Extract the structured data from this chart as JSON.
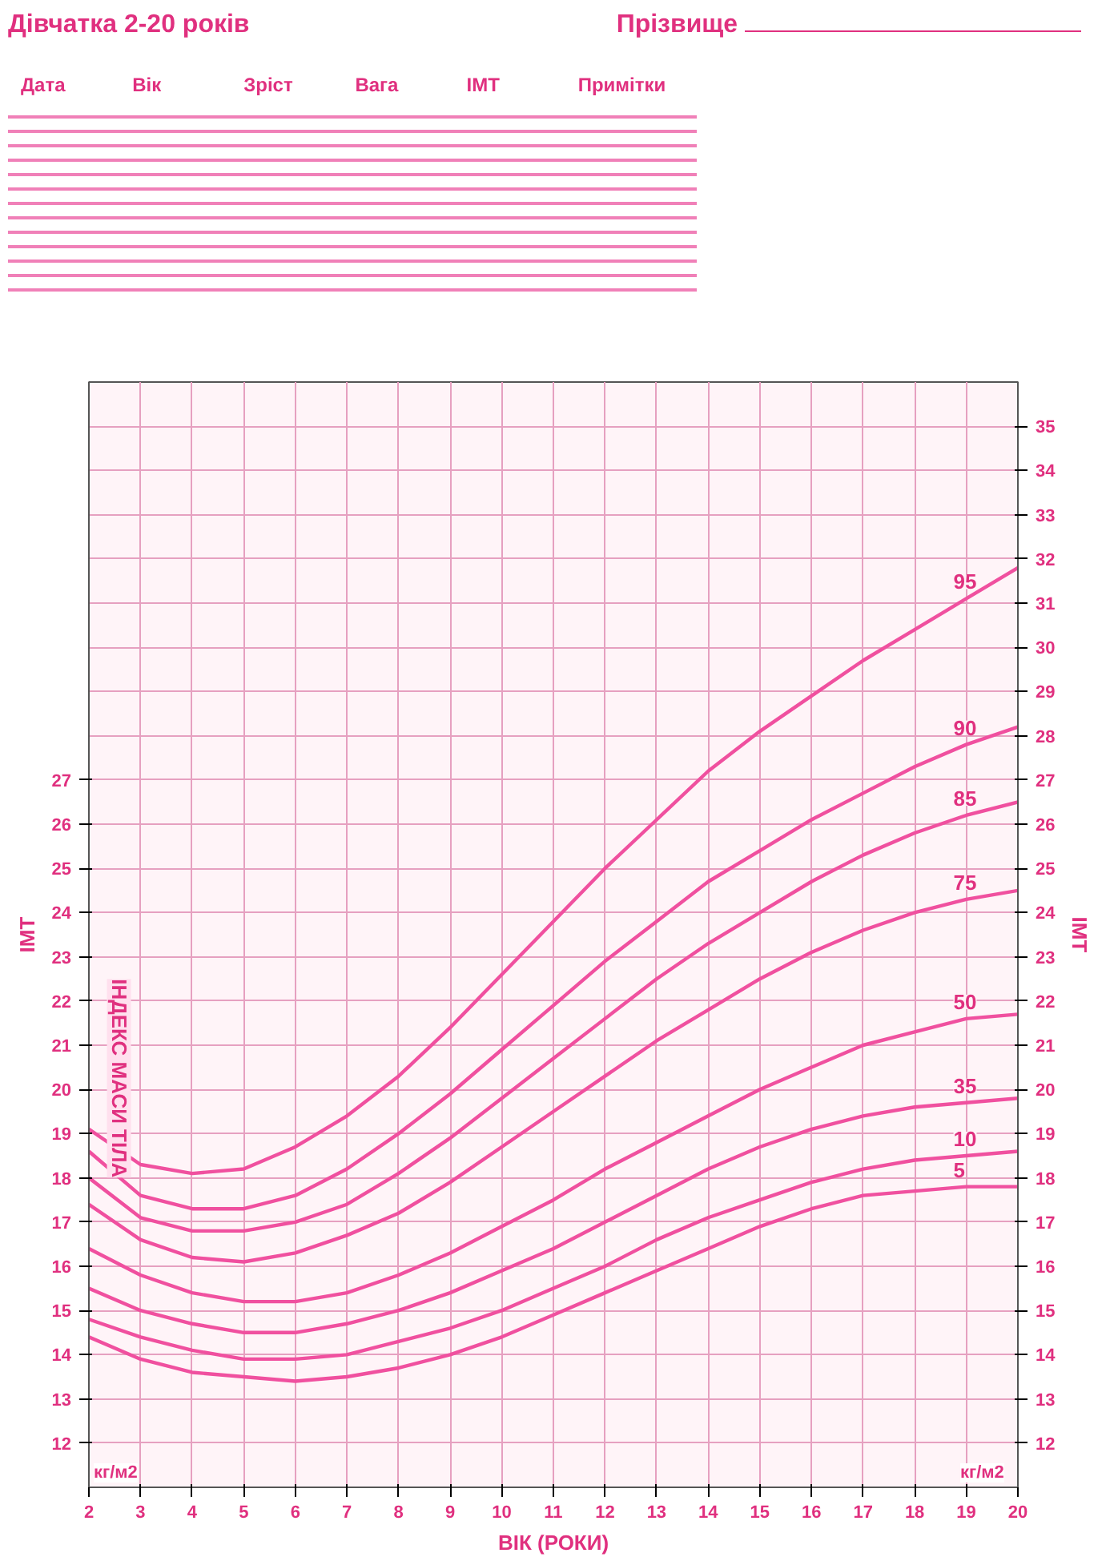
{
  "chart_data": {
    "type": "line",
    "title": "Дівчатка 2-20 років",
    "xlabel": "ВІК (РОКИ)",
    "ylabel": "ІМТ",
    "y2label": "ІМТ",
    "annotations": [
      "Прізвище",
      "Дата",
      "Вік",
      "Зріст",
      "Вага",
      "ІМТ",
      "Примітки",
      "ІНДЕКС МАСИ ТІЛА",
      "кг/м2",
      "кг/м2"
    ],
    "x": [
      2,
      3,
      4,
      5,
      6,
      7,
      8,
      9,
      10,
      11,
      12,
      13,
      14,
      15,
      16,
      17,
      18,
      19,
      20
    ],
    "xlim": [
      2,
      20
    ],
    "xticks": [
      2,
      3,
      4,
      5,
      6,
      7,
      8,
      9,
      10,
      11,
      12,
      13,
      14,
      15,
      16,
      17,
      18,
      19,
      20
    ],
    "ylim": [
      11,
      36
    ],
    "yticks": [
      12,
      13,
      14,
      15,
      16,
      17,
      18,
      19,
      20,
      21,
      22,
      23,
      24,
      25,
      26,
      27
    ],
    "y2lim": [
      11,
      36
    ],
    "y2ticks": [
      12,
      13,
      14,
      15,
      16,
      17,
      18,
      19,
      20,
      21,
      22,
      23,
      24,
      25,
      26,
      27,
      28,
      29,
      30,
      31,
      32,
      33,
      34,
      35
    ],
    "grid": true,
    "line_style": "solid",
    "marker": "none",
    "series": [
      {
        "name": "95",
        "color": "#f0509f",
        "values": [
          19.1,
          18.3,
          18.1,
          18.2,
          18.7,
          19.4,
          20.3,
          21.4,
          22.6,
          23.8,
          25.0,
          26.1,
          27.2,
          28.1,
          28.9,
          29.7,
          30.4,
          31.1,
          31.8
        ]
      },
      {
        "name": "90",
        "color": "#f0509f",
        "values": [
          18.6,
          17.6,
          17.3,
          17.3,
          17.6,
          18.2,
          19.0,
          19.9,
          20.9,
          21.9,
          22.9,
          23.8,
          24.7,
          25.4,
          26.1,
          26.7,
          27.3,
          27.8,
          28.2
        ]
      },
      {
        "name": "85",
        "color": "#f0509f",
        "values": [
          18.0,
          17.1,
          16.8,
          16.8,
          17.0,
          17.4,
          18.1,
          18.9,
          19.8,
          20.7,
          21.6,
          22.5,
          23.3,
          24.0,
          24.7,
          25.3,
          25.8,
          26.2,
          26.5
        ]
      },
      {
        "name": "75",
        "color": "#f0509f",
        "values": [
          17.4,
          16.6,
          16.2,
          16.1,
          16.3,
          16.7,
          17.2,
          17.9,
          18.7,
          19.5,
          20.3,
          21.1,
          21.8,
          22.5,
          23.1,
          23.6,
          24.0,
          24.3,
          24.5
        ]
      },
      {
        "name": "50",
        "color": "#f0509f",
        "values": [
          16.4,
          15.8,
          15.4,
          15.2,
          15.2,
          15.4,
          15.8,
          16.3,
          16.9,
          17.5,
          18.2,
          18.8,
          19.4,
          20.0,
          20.5,
          21.0,
          21.3,
          21.6,
          21.7
        ]
      },
      {
        "name": "35",
        "color": "#f0509f",
        "values": [
          15.5,
          15.0,
          14.7,
          14.5,
          14.5,
          14.7,
          15.0,
          15.4,
          15.9,
          16.4,
          17.0,
          17.6,
          18.2,
          18.7,
          19.1,
          19.4,
          19.6,
          19.7,
          19.8
        ]
      },
      {
        "name": "10",
        "color": "#f0509f",
        "values": [
          14.8,
          14.4,
          14.1,
          13.9,
          13.9,
          14.0,
          14.3,
          14.6,
          15.0,
          15.5,
          16.0,
          16.6,
          17.1,
          17.5,
          17.9,
          18.2,
          18.4,
          18.5,
          18.6
        ]
      },
      {
        "name": "5",
        "color": "#f0509f",
        "values": [
          14.4,
          13.9,
          13.6,
          13.5,
          13.4,
          13.5,
          13.7,
          14.0,
          14.4,
          14.9,
          15.4,
          15.9,
          16.4,
          16.9,
          17.3,
          17.6,
          17.7,
          17.8,
          17.8
        ]
      }
    ]
  }
}
